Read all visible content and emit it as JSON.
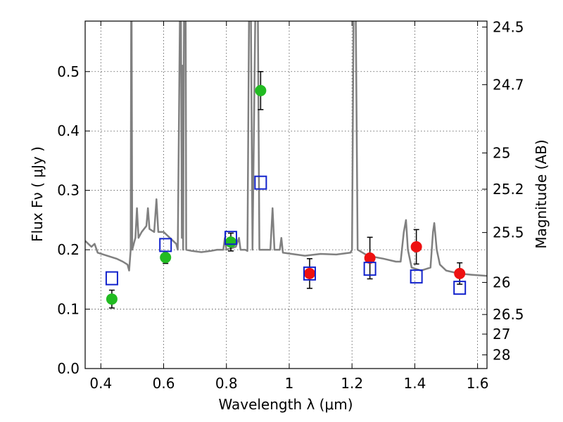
{
  "chart_data": {
    "type": "scatter",
    "xlabel": "Wavelength  λ (μm)",
    "ylabel": "Flux  Fν  ( μJy )",
    "y2label": "Magnitude (AB)",
    "xlim": [
      0.35,
      1.63
    ],
    "ylim": [
      0.0,
      0.585
    ],
    "grid": true,
    "x_ticks": [
      0.4,
      0.6,
      0.8,
      1.0,
      1.2,
      1.4,
      1.6
    ],
    "x_tick_labels": [
      "0.4",
      "0.6",
      "0.8",
      "1",
      "1.2",
      "1.4",
      "1.6"
    ],
    "y_ticks": [
      0.0,
      0.1,
      0.2,
      0.3,
      0.4,
      0.5
    ],
    "y_tick_labels": [
      "0.0",
      "0.1",
      "0.2",
      "0.3",
      "0.4",
      "0.5"
    ],
    "y2_ticks": [
      {
        "label": "24.5",
        "flux": 0.575
      },
      {
        "label": "24.7",
        "flux": 0.478
      },
      {
        "label": "25",
        "flux": 0.363
      },
      {
        "label": "25.2",
        "flux": 0.302
      },
      {
        "label": "25.5",
        "flux": 0.229
      },
      {
        "label": "26",
        "flux": 0.145
      },
      {
        "label": "26.5",
        "flux": 0.091
      },
      {
        "label": "27",
        "flux": 0.058
      },
      {
        "label": "28",
        "flux": 0.023
      }
    ],
    "series": [
      {
        "marker": "circle",
        "color": "#22bb22",
        "points": [
          {
            "x": 0.435,
            "y": 0.117,
            "err": 0.015
          },
          {
            "x": 0.606,
            "y": 0.187,
            "err": 0.01
          },
          {
            "x": 0.814,
            "y": 0.213,
            "err": 0.015
          },
          {
            "x": 0.909,
            "y": 0.468,
            "err": 0.032
          }
        ]
      },
      {
        "marker": "circle",
        "color": "#ee1111",
        "points": [
          {
            "x": 1.065,
            "y": 0.16,
            "err": 0.025
          },
          {
            "x": 1.257,
            "y": 0.186,
            "err": 0.035
          },
          {
            "x": 1.405,
            "y": 0.205,
            "err": 0.029
          },
          {
            "x": 1.543,
            "y": 0.16,
            "err": 0.018
          }
        ]
      },
      {
        "marker": "square-open",
        "color": "#1122cc",
        "points": [
          {
            "x": 0.435,
            "y": 0.152
          },
          {
            "x": 0.606,
            "y": 0.208
          },
          {
            "x": 0.814,
            "y": 0.22
          },
          {
            "x": 0.909,
            "y": 0.313
          },
          {
            "x": 1.065,
            "y": 0.16
          },
          {
            "x": 1.257,
            "y": 0.168
          },
          {
            "x": 1.405,
            "y": 0.155
          },
          {
            "x": 1.543,
            "y": 0.136
          }
        ]
      }
    ],
    "model_spectrum": {
      "color": "#808080",
      "points": [
        [
          0.35,
          0.215
        ],
        [
          0.37,
          0.205
        ],
        [
          0.38,
          0.21
        ],
        [
          0.39,
          0.195
        ],
        [
          0.42,
          0.19
        ],
        [
          0.45,
          0.185
        ],
        [
          0.47,
          0.18
        ],
        [
          0.485,
          0.175
        ],
        [
          0.49,
          0.165
        ],
        [
          0.495,
          0.2
        ],
        [
          0.4965,
          0.6
        ],
        [
          0.498,
          0.6
        ],
        [
          0.5,
          0.2
        ],
        [
          0.505,
          0.21
        ],
        [
          0.51,
          0.22
        ],
        [
          0.515,
          0.27
        ],
        [
          0.52,
          0.22
        ],
        [
          0.53,
          0.23
        ],
        [
          0.545,
          0.24
        ],
        [
          0.55,
          0.27
        ],
        [
          0.555,
          0.235
        ],
        [
          0.57,
          0.23
        ],
        [
          0.577,
          0.285
        ],
        [
          0.583,
          0.23
        ],
        [
          0.6,
          0.23
        ],
        [
          0.62,
          0.22
        ],
        [
          0.63,
          0.215
        ],
        [
          0.64,
          0.21
        ],
        [
          0.645,
          0.2
        ],
        [
          0.652,
          0.6
        ],
        [
          0.655,
          0.6
        ],
        [
          0.658,
          0.22
        ],
        [
          0.66,
          0.51
        ],
        [
          0.662,
          0.2
        ],
        [
          0.665,
          0.6
        ],
        [
          0.67,
          0.6
        ],
        [
          0.672,
          0.2
        ],
        [
          0.69,
          0.198
        ],
        [
          0.72,
          0.196
        ],
        [
          0.75,
          0.198
        ],
        [
          0.77,
          0.2
        ],
        [
          0.79,
          0.2
        ],
        [
          0.795,
          0.22
        ],
        [
          0.8,
          0.2
        ],
        [
          0.83,
          0.205
        ],
        [
          0.84,
          0.22
        ],
        [
          0.845,
          0.2
        ],
        [
          0.86,
          0.2
        ],
        [
          0.867,
          0.198
        ],
        [
          0.872,
          0.6
        ],
        [
          0.878,
          0.6
        ],
        [
          0.883,
          0.2
        ],
        [
          0.892,
          0.6
        ],
        [
          0.9,
          0.6
        ],
        [
          0.905,
          0.2
        ],
        [
          0.92,
          0.2
        ],
        [
          0.94,
          0.2
        ],
        [
          0.947,
          0.27
        ],
        [
          0.953,
          0.2
        ],
        [
          0.97,
          0.2
        ],
        [
          0.975,
          0.22
        ],
        [
          0.98,
          0.195
        ],
        [
          1.05,
          0.19
        ],
        [
          1.1,
          0.193
        ],
        [
          1.15,
          0.192
        ],
        [
          1.195,
          0.195
        ],
        [
          1.2,
          0.2
        ],
        [
          1.205,
          0.6
        ],
        [
          1.212,
          0.6
        ],
        [
          1.218,
          0.2
        ],
        [
          1.25,
          0.19
        ],
        [
          1.3,
          0.185
        ],
        [
          1.34,
          0.18
        ],
        [
          1.355,
          0.18
        ],
        [
          1.365,
          0.23
        ],
        [
          1.372,
          0.25
        ],
        [
          1.378,
          0.2
        ],
        [
          1.39,
          0.17
        ],
        [
          1.42,
          0.165
        ],
        [
          1.45,
          0.17
        ],
        [
          1.458,
          0.23
        ],
        [
          1.462,
          0.245
        ],
        [
          1.47,
          0.2
        ],
        [
          1.48,
          0.175
        ],
        [
          1.5,
          0.165
        ],
        [
          1.54,
          0.16
        ],
        [
          1.58,
          0.158
        ],
        [
          1.63,
          0.156
        ]
      ]
    }
  }
}
